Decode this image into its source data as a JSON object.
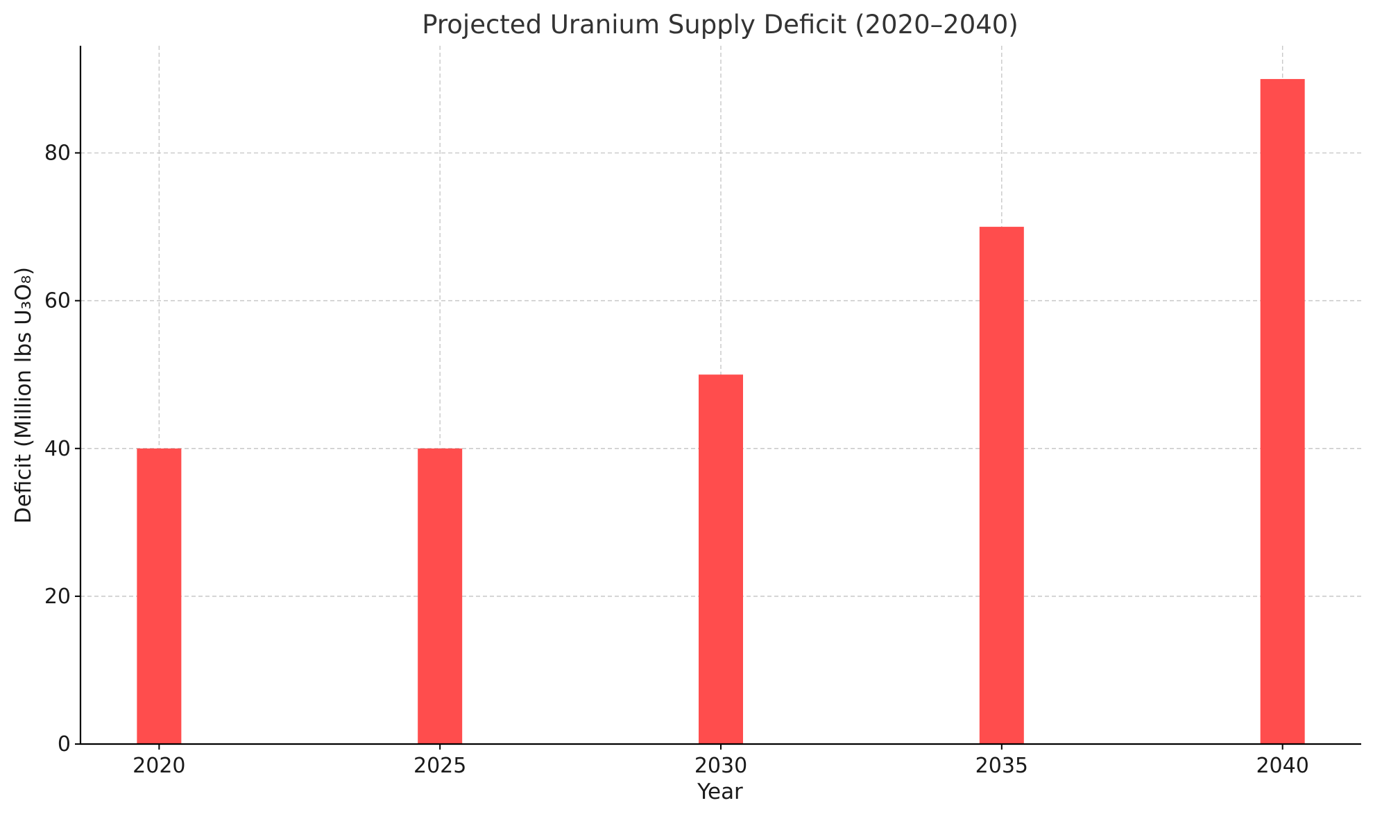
{
  "chart_data": {
    "type": "bar",
    "title": "Projected Uranium Supply Deficit (2020–2040)",
    "xlabel": "Year",
    "ylabel": "Deficit (Million lbs U₃O₈)",
    "categories": [
      "2020",
      "2025",
      "2030",
      "2035",
      "2040"
    ],
    "x": [
      2020,
      2025,
      2030,
      2035,
      2040
    ],
    "values": [
      40,
      40,
      50,
      70,
      90
    ],
    "xlim": [
      2018.6,
      2041.4
    ],
    "ylim": [
      0,
      94.5
    ],
    "yticks": [
      0,
      20,
      40,
      60,
      80
    ],
    "grid": true,
    "bar_color": "#ff4d4d"
  }
}
